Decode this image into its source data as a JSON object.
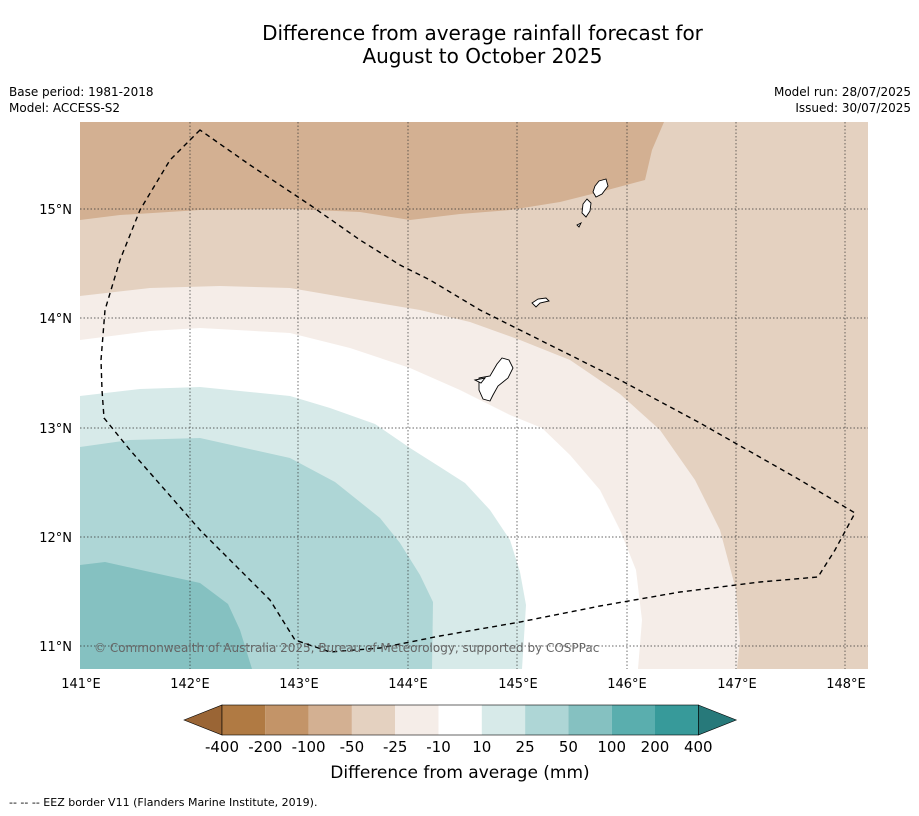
{
  "title_line1": "Difference from average rainfall forecast for",
  "title_line2": "August to October 2025",
  "meta_left": {
    "base_period": "Base period: 1981-2018",
    "model": "Model: ACCESS-S2"
  },
  "meta_right": {
    "model_run": "Model run: 28/07/2025",
    "issued": "Issued: 30/07/2025"
  },
  "map": {
    "lon_ticks": [
      "141°E",
      "142°E",
      "143°E",
      "144°E",
      "145°E",
      "146°E",
      "147°E",
      "148°E"
    ],
    "lat_ticks": [
      "15°N",
      "14°N",
      "13°N",
      "12°N",
      "11°N"
    ],
    "copyright": "© Commonwealth of Australia 2025, Bureau of Meteorology, supported by COSPPac"
  },
  "colorbar": {
    "labels": [
      "-400",
      "-200",
      "-100",
      "-50",
      "-25",
      "-10",
      "10",
      "25",
      "50",
      "100",
      "200",
      "400"
    ],
    "colors": [
      "#9a6535",
      "#b07a43",
      "#c39468",
      "#d3b092",
      "#e4d1c0",
      "#f5ede8",
      "#ffffff",
      "#d7eae9",
      "#aed6d6",
      "#85c1c1",
      "#5aaeae",
      "#379a9a",
      "#27797a"
    ],
    "label": "Difference from average (mm)"
  },
  "footer": "--  --  -- EEZ border V11 (Flanders Marine Institute, 2019)."
}
